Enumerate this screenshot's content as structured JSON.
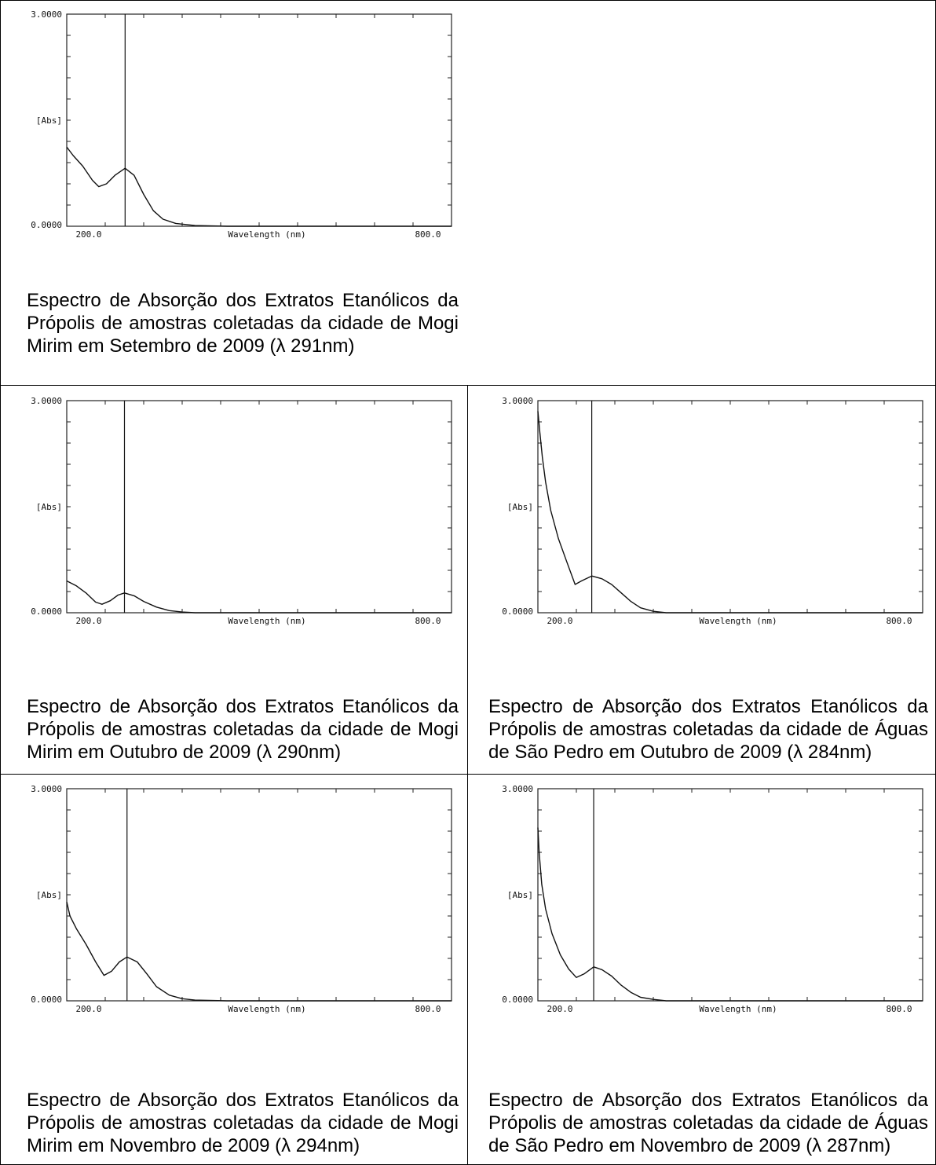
{
  "chart_data": [
    {
      "type": "line",
      "ylabel": "[Abs]",
      "xlabel": "Wavelength (nm)",
      "ytick_labels": [
        "3.0000",
        "0.0000"
      ],
      "xtick_labels": [
        "200.0",
        "800.0"
      ],
      "xlim": [
        200,
        800
      ],
      "ylim": [
        0,
        3
      ],
      "marker_line_x": 291,
      "series": [
        {
          "x": [
            200,
            210,
            225,
            240,
            250,
            262,
            275,
            291,
            305,
            320,
            335,
            350,
            370,
            400,
            450,
            500,
            600,
            700,
            800
          ],
          "y": [
            1.12,
            1.0,
            0.85,
            0.65,
            0.56,
            0.6,
            0.72,
            0.82,
            0.72,
            0.45,
            0.22,
            0.1,
            0.04,
            0.01,
            0,
            0,
            0,
            0,
            0
          ]
        }
      ],
      "caption": "Espectro de Absorção dos Extratos Etanólicos da Própolis de amostras coletadas da cidade de Mogi Mirim em Setembro de 2009 (λ 291nm)"
    },
    {
      "type": "line",
      "ylabel": "[Abs]",
      "xlabel": "Wavelength (nm)",
      "ytick_labels": [
        "3.0000",
        "0.0000"
      ],
      "xtick_labels": [
        "200.0",
        "800.0"
      ],
      "xlim": [
        200,
        800
      ],
      "ylim": [
        0,
        3
      ],
      "marker_line_x": 290,
      "series": [
        {
          "x": [
            200,
            215,
            230,
            245,
            255,
            268,
            280,
            290,
            305,
            320,
            340,
            360,
            380,
            400,
            450,
            500,
            600,
            700,
            800
          ],
          "y": [
            0.45,
            0.38,
            0.28,
            0.15,
            0.12,
            0.17,
            0.25,
            0.28,
            0.24,
            0.16,
            0.08,
            0.03,
            0.01,
            0,
            0,
            0,
            0,
            0,
            0
          ]
        }
      ],
      "caption": "Espectro de Absorção dos Extratos Etanólicos da Própolis de amostras coletadas da cidade de Mogi Mirim em Outubro de 2009 (λ 290nm)"
    },
    {
      "type": "line",
      "ylabel": "[Abs]",
      "xlabel": "Wavelength (nm)",
      "ytick_labels": [
        "3.0000",
        "0.0000"
      ],
      "xtick_labels": [
        "200.0",
        "800.0"
      ],
      "xlim": [
        200,
        800
      ],
      "ylim": [
        0,
        3
      ],
      "marker_line_x": 284,
      "series": [
        {
          "x": [
            200,
            203,
            207,
            212,
            220,
            232,
            245,
            258,
            268,
            284,
            300,
            315,
            330,
            345,
            360,
            380,
            400,
            450,
            500,
            600,
            700,
            800
          ],
          "y": [
            2.85,
            2.55,
            2.2,
            1.85,
            1.45,
            1.05,
            0.72,
            0.4,
            0.45,
            0.52,
            0.48,
            0.4,
            0.28,
            0.16,
            0.07,
            0.02,
            0,
            0,
            0,
            0,
            0,
            0
          ]
        }
      ],
      "caption": "Espectro de Absorção dos Extratos Etanólicos da Própolis de amostras coletadas da cidade de Águas de São Pedro em Outubro de 2009 (λ 284nm)"
    },
    {
      "type": "line",
      "ylabel": "[Abs]",
      "xlabel": "Wavelength (nm)",
      "ytick_labels": [
        "3.0000",
        "0.0000"
      ],
      "xtick_labels": [
        "200.0",
        "800.0"
      ],
      "xlim": [
        200,
        800
      ],
      "ylim": [
        0,
        3
      ],
      "marker_line_x": 294,
      "series": [
        {
          "x": [
            200,
            205,
            215,
            230,
            245,
            258,
            270,
            282,
            294,
            310,
            325,
            340,
            360,
            380,
            400,
            450,
            500,
            600,
            700,
            800
          ],
          "y": [
            1.4,
            1.2,
            1.02,
            0.8,
            0.55,
            0.36,
            0.42,
            0.55,
            0.62,
            0.55,
            0.38,
            0.2,
            0.08,
            0.03,
            0.01,
            0,
            0,
            0,
            0,
            0
          ]
        }
      ],
      "caption": "Espectro de Absorção dos Extratos Etanólicos da Própolis de amostras coletadas da cidade de Mogi Mirim em Novembro de 2009 (λ 294nm)"
    },
    {
      "type": "line",
      "ylabel": "[Abs]",
      "xlabel": "Wavelength (nm)",
      "ytick_labels": [
        "3.0000",
        "0.0000"
      ],
      "xtick_labels": [
        "200.0",
        "800.0"
      ],
      "xlim": [
        200,
        800
      ],
      "ylim": [
        0,
        3
      ],
      "marker_line_x": 287,
      "series": [
        {
          "x": [
            200,
            202,
            206,
            212,
            222,
            235,
            248,
            260,
            272,
            287,
            300,
            315,
            330,
            345,
            360,
            380,
            400,
            450,
            500,
            600,
            700,
            800
          ],
          "y": [
            2.45,
            2.1,
            1.65,
            1.3,
            0.95,
            0.65,
            0.45,
            0.33,
            0.38,
            0.48,
            0.44,
            0.35,
            0.22,
            0.12,
            0.05,
            0.02,
            0,
            0,
            0,
            0,
            0,
            0
          ]
        }
      ],
      "caption": "Espectro de Absorção dos Extratos Etanólicos da Própolis de amostras coletadas da cidade de Águas de São Pedro em Novembro de 2009 (λ 287nm)"
    }
  ]
}
